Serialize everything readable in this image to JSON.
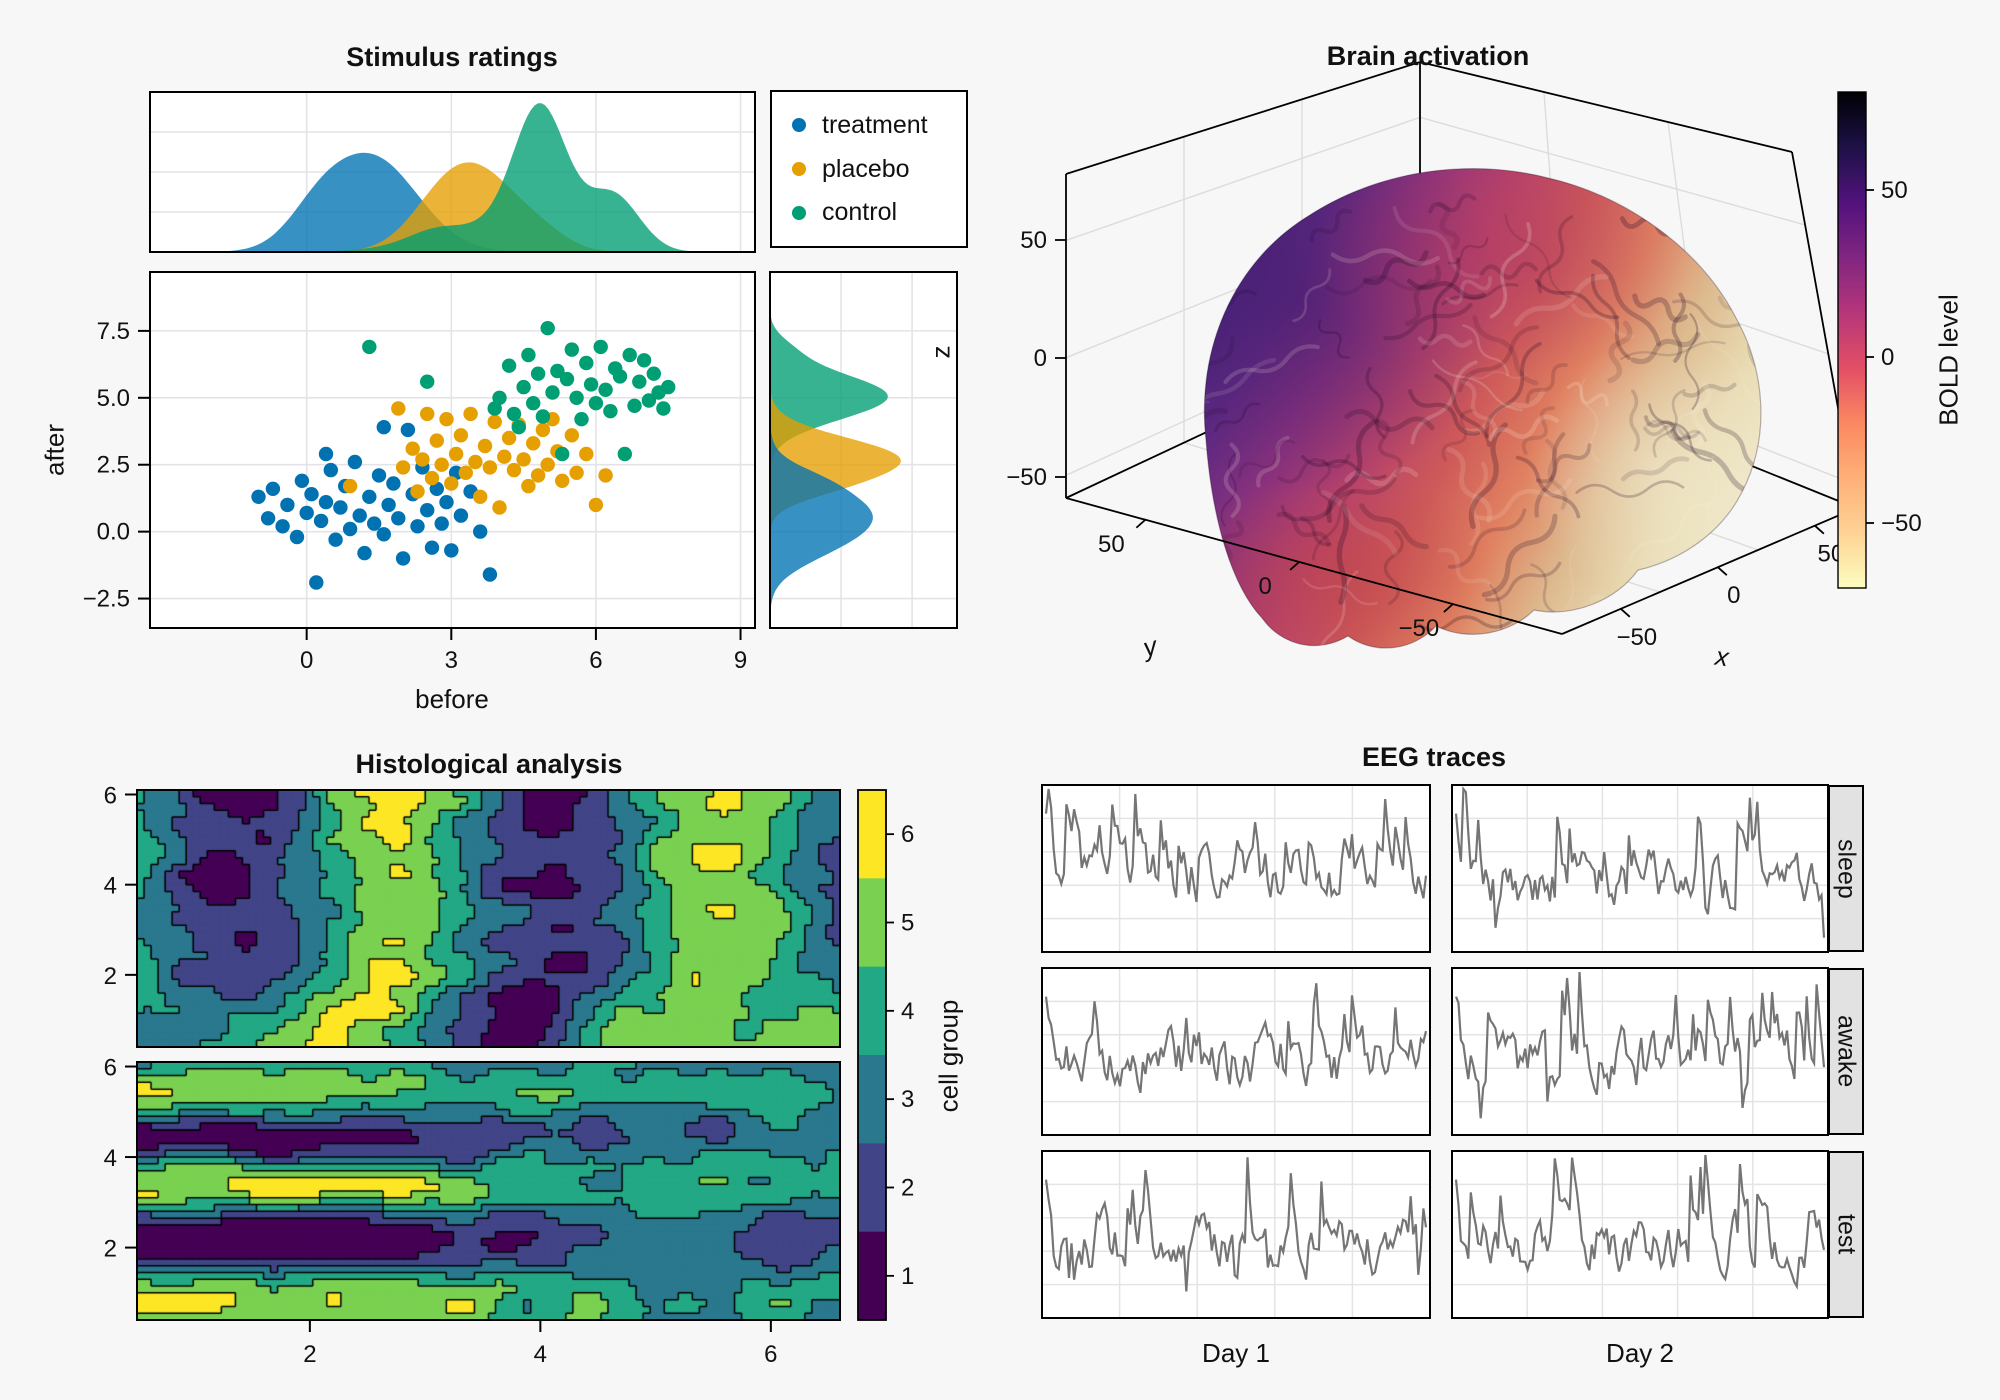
{
  "figure": {
    "background": "#f7f7f8",
    "panel_bg": "#ffffff",
    "grid_color": "#e4e4e8",
    "spine_color": "#000000",
    "strip_bg": "#e2e2e2",
    "text_color": "#111111"
  },
  "chart_data": [
    {
      "id": "stimulus",
      "type": "scatter",
      "title": "Stimulus ratings",
      "xlabel": "before",
      "ylabel": "after",
      "marginal_label": "z",
      "xlim": [
        -3.25,
        9.3
      ],
      "ylim": [
        -3.6,
        9.7
      ],
      "xticks": {
        "values": [
          0,
          3,
          6,
          9
        ],
        "labels": [
          "0",
          "3",
          "6",
          "9"
        ]
      },
      "yticks": {
        "values": [
          7.5,
          5.0,
          2.5,
          0.0,
          -2.5
        ],
        "labels": [
          "7.5",
          "5.0",
          "2.5",
          "0.0",
          "−2.5"
        ]
      },
      "fill_alpha": 0.78,
      "groups": [
        {
          "name": "treatment",
          "color": "#0072B2",
          "density_x": {
            "components": [
              [
                1.35,
                0.95,
                1.0
              ],
              [
                0.2,
                0.6,
                0.25
              ]
            ],
            "peak": 0.62
          },
          "density_y": {
            "components": [
              [
                0.75,
                1.0,
                1.0
              ],
              [
                -0.6,
                0.8,
                0.35
              ],
              [
                2.0,
                0.5,
                0.15
              ]
            ],
            "peak": 0.55
          },
          "points": [
            [
              -1.0,
              1.3
            ],
            [
              -0.8,
              0.5
            ],
            [
              -0.7,
              1.6
            ],
            [
              -0.5,
              0.2
            ],
            [
              -0.4,
              1.0
            ],
            [
              -0.2,
              -0.2
            ],
            [
              -0.1,
              1.9
            ],
            [
              0.0,
              0.7
            ],
            [
              0.1,
              1.4
            ],
            [
              0.2,
              -1.9
            ],
            [
              0.3,
              0.4
            ],
            [
              0.4,
              1.1
            ],
            [
              0.5,
              2.3
            ],
            [
              0.6,
              -0.3
            ],
            [
              0.7,
              0.9
            ],
            [
              0.8,
              1.7
            ],
            [
              0.9,
              0.1
            ],
            [
              1.0,
              2.6
            ],
            [
              1.1,
              0.6
            ],
            [
              1.2,
              -0.8
            ],
            [
              1.3,
              1.3
            ],
            [
              1.4,
              0.3
            ],
            [
              1.5,
              2.1
            ],
            [
              1.6,
              -0.1
            ],
            [
              1.7,
              1.0
            ],
            [
              1.8,
              1.8
            ],
            [
              1.9,
              0.5
            ],
            [
              2.0,
              -1.0
            ],
            [
              2.1,
              3.8
            ],
            [
              2.2,
              1.4
            ],
            [
              2.3,
              0.2
            ],
            [
              2.4,
              2.4
            ],
            [
              2.5,
              0.8
            ],
            [
              2.6,
              -0.6
            ],
            [
              2.7,
              1.6
            ],
            [
              2.8,
              0.3
            ],
            [
              2.9,
              1.1
            ],
            [
              3.0,
              -0.7
            ],
            [
              3.1,
              2.2
            ],
            [
              3.2,
              0.6
            ],
            [
              3.4,
              1.5
            ],
            [
              3.6,
              0.0
            ],
            [
              3.8,
              -1.6
            ],
            [
              1.6,
              3.9
            ],
            [
              0.4,
              2.9
            ]
          ]
        },
        {
          "name": "placebo",
          "color": "#E69F00",
          "density_x": {
            "components": [
              [
                2.95,
                0.75,
                0.85
              ],
              [
                3.9,
                0.8,
                0.8
              ],
              [
                5.0,
                0.5,
                0.12
              ]
            ],
            "peak": 0.56
          },
          "density_y": {
            "components": [
              [
                2.7,
                0.8,
                1.0
              ],
              [
                1.6,
                0.5,
                0.18
              ]
            ],
            "peak": 0.7
          },
          "points": [
            [
              0.9,
              1.7
            ],
            [
              1.9,
              4.6
            ],
            [
              2.0,
              2.4
            ],
            [
              2.2,
              3.1
            ],
            [
              2.3,
              1.5
            ],
            [
              2.4,
              2.7
            ],
            [
              2.5,
              4.4
            ],
            [
              2.6,
              2.0
            ],
            [
              2.7,
              3.4
            ],
            [
              2.8,
              2.5
            ],
            [
              2.9,
              4.2
            ],
            [
              3.0,
              1.8
            ],
            [
              3.1,
              2.9
            ],
            [
              3.2,
              3.6
            ],
            [
              3.3,
              2.2
            ],
            [
              3.4,
              4.4
            ],
            [
              3.5,
              2.6
            ],
            [
              3.6,
              1.3
            ],
            [
              3.7,
              3.2
            ],
            [
              3.8,
              2.4
            ],
            [
              3.9,
              4.1
            ],
            [
              4.0,
              0.9
            ],
            [
              4.1,
              2.8
            ],
            [
              4.2,
              3.5
            ],
            [
              4.3,
              2.3
            ],
            [
              4.4,
              4.0
            ],
            [
              4.5,
              2.7
            ],
            [
              4.6,
              1.7
            ],
            [
              4.7,
              3.3
            ],
            [
              4.8,
              2.1
            ],
            [
              4.9,
              3.8
            ],
            [
              5.0,
              2.5
            ],
            [
              5.1,
              4.2
            ],
            [
              5.2,
              3.0
            ],
            [
              5.3,
              1.9
            ],
            [
              5.5,
              3.6
            ],
            [
              5.6,
              2.2
            ],
            [
              5.8,
              2.9
            ],
            [
              6.0,
              1.0
            ],
            [
              6.2,
              2.1
            ]
          ]
        },
        {
          "name": "control",
          "color": "#009E73",
          "density_x": {
            "components": [
              [
                4.85,
                0.55,
                1.0
              ],
              [
                6.35,
                0.55,
                0.42
              ],
              [
                3.6,
                1.2,
                0.18
              ],
              [
                2.6,
                0.5,
                0.05
              ]
            ],
            "peak": 0.93
          },
          "density_y": {
            "components": [
              [
                5.05,
                0.85,
                1.0
              ],
              [
                6.8,
                0.5,
                0.12
              ]
            ],
            "peak": 0.63
          },
          "points": [
            [
              1.3,
              6.9
            ],
            [
              2.5,
              5.6
            ],
            [
              4.0,
              5.0
            ],
            [
              4.2,
              6.2
            ],
            [
              4.3,
              4.4
            ],
            [
              4.5,
              5.4
            ],
            [
              4.6,
              6.6
            ],
            [
              4.7,
              4.8
            ],
            [
              4.8,
              5.9
            ],
            [
              4.9,
              4.3
            ],
            [
              5.0,
              7.6
            ],
            [
              5.1,
              5.2
            ],
            [
              5.2,
              6.0
            ],
            [
              5.3,
              2.9
            ],
            [
              5.4,
              5.7
            ],
            [
              5.5,
              6.8
            ],
            [
              5.6,
              5.0
            ],
            [
              5.7,
              4.2
            ],
            [
              5.8,
              6.3
            ],
            [
              5.9,
              5.5
            ],
            [
              6.0,
              4.8
            ],
            [
              6.1,
              6.9
            ],
            [
              6.2,
              5.3
            ],
            [
              6.3,
              4.5
            ],
            [
              6.4,
              6.1
            ],
            [
              6.5,
              5.8
            ],
            [
              6.6,
              2.9
            ],
            [
              6.7,
              6.6
            ],
            [
              6.8,
              4.7
            ],
            [
              6.9,
              5.6
            ],
            [
              7.0,
              6.4
            ],
            [
              7.1,
              4.9
            ],
            [
              7.2,
              5.9
            ],
            [
              7.3,
              5.2
            ],
            [
              7.4,
              4.6
            ],
            [
              7.5,
              5.4
            ],
            [
              4.4,
              3.9
            ],
            [
              3.9,
              4.6
            ]
          ]
        }
      ]
    },
    {
      "id": "brain",
      "type": "surface3d",
      "title": "Brain activation",
      "axis_labels": {
        "x": "x",
        "y": "y"
      },
      "ticks": {
        "x": [
          "−50",
          "0",
          "50"
        ],
        "y": [
          "50",
          "0",
          "−50"
        ],
        "z": [
          "50",
          "0",
          "−50"
        ]
      },
      "colorbar": {
        "label": "BOLD level",
        "tick_labels": [
          "50",
          "0",
          "−50"
        ],
        "range_hint": [
          -70,
          80
        ],
        "colormap": "magma (high = dark, top)",
        "gradient_top_to_bottom": [
          "#000004",
          "#1d1147",
          "#51127c",
          "#812581",
          "#b5367a",
          "#e34e65",
          "#fb8861",
          "#feb078",
          "#fed395",
          "#fcfdbf"
        ]
      },
      "brain_gradient_back_to_front": [
        "#46257a",
        "#632a82",
        "#8f337c",
        "#b8436a",
        "#ce5a59",
        "#e08160",
        "#ddb98e",
        "#e9dcb4",
        "#efe9cd"
      ]
    },
    {
      "id": "histology",
      "type": "contourf",
      "title": "Histological analysis",
      "xlim": [
        0.5,
        6.6
      ],
      "ylim": [
        0.4,
        6.1
      ],
      "xticks": {
        "values": [
          2,
          4,
          6
        ],
        "labels": [
          "2",
          "4",
          "6"
        ]
      },
      "yticks": {
        "values": [
          6,
          4,
          2
        ],
        "labels": [
          "6",
          "4",
          "2"
        ]
      },
      "levels": [
        "1",
        "2",
        "3",
        "4",
        "5",
        "6"
      ],
      "palette": [
        "#440154",
        "#414487",
        "#2a788e",
        "#22a884",
        "#7ad151",
        "#fde725"
      ],
      "colorbar_label": "cell group",
      "colorbar_tick_labels": [
        "6",
        "5",
        "4",
        "3",
        "2",
        "1"
      ],
      "subplots": [
        {
          "bands": "vertical",
          "seed": 11
        },
        {
          "bands": "horizontal",
          "seed": 23
        }
      ]
    },
    {
      "id": "eeg",
      "type": "line-grid",
      "title": "EEG traces",
      "row_labels": [
        "sleep",
        "awake",
        "test"
      ],
      "col_labels": [
        "Day 1",
        "Day 2"
      ],
      "line_color": "#757575",
      "n": 150,
      "seeds": [
        [
          3,
          14
        ],
        [
          25,
          36
        ],
        [
          47,
          58
        ]
      ]
    }
  ]
}
